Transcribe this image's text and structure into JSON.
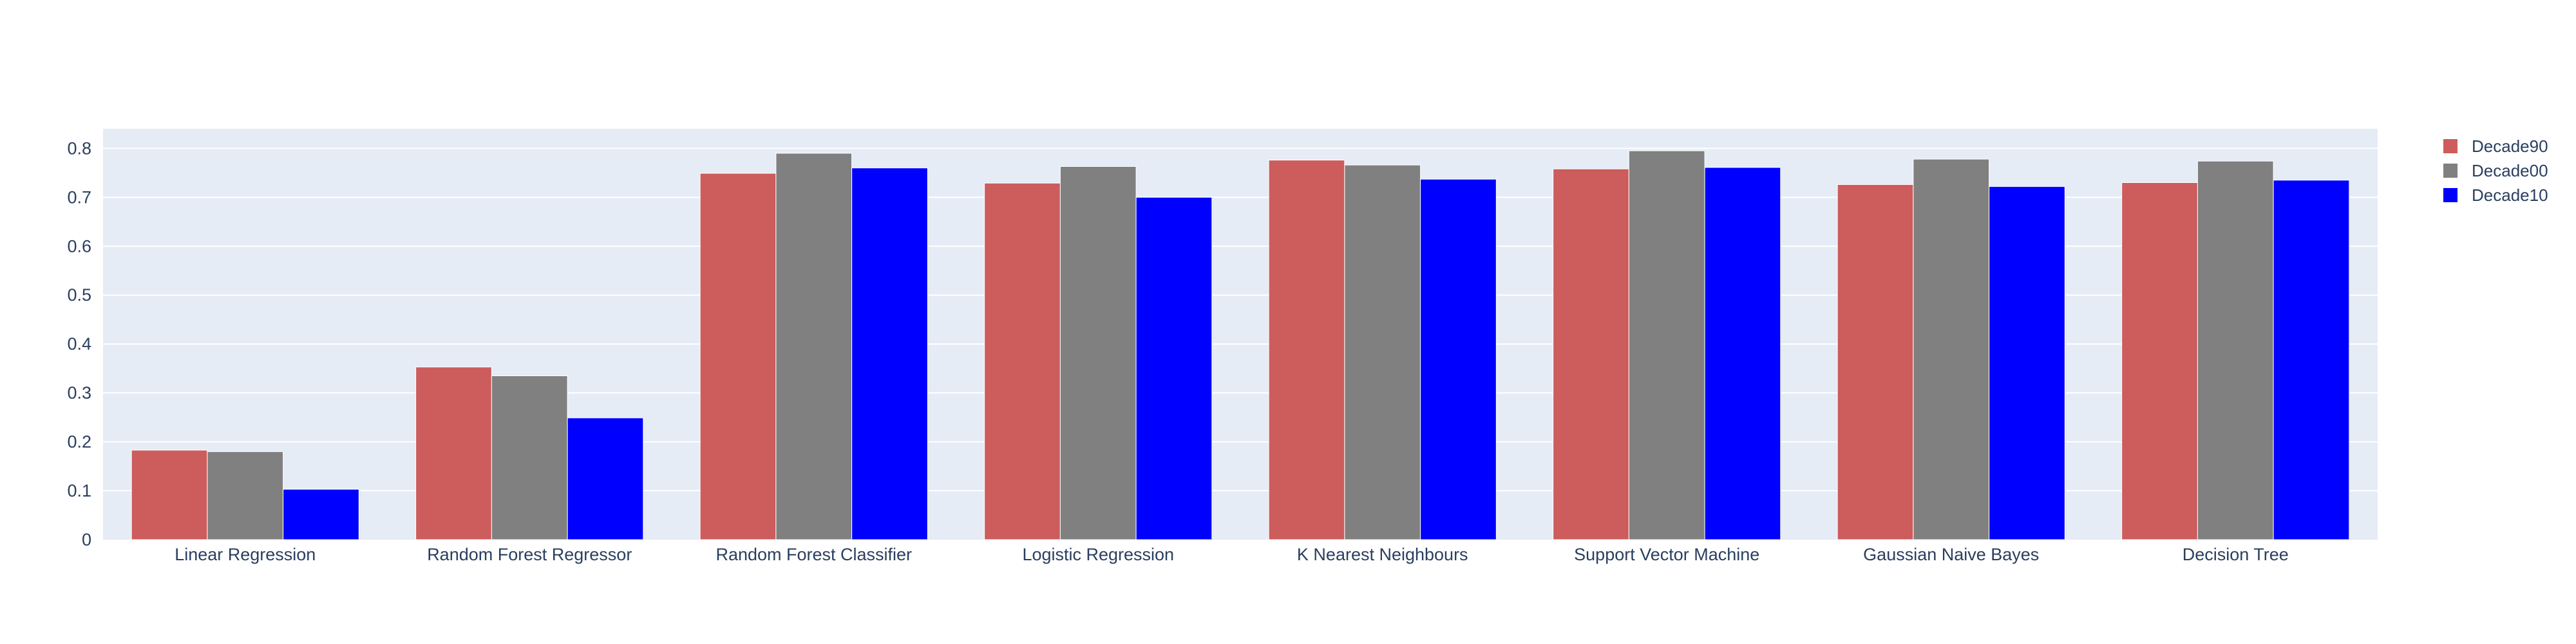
{
  "chart_data": {
    "type": "bar",
    "title": "",
    "xlabel": "",
    "ylabel": "",
    "categories": [
      "Linear Regression",
      "Random Forest Regressor",
      "Random Forest Classifier",
      "Logistic Regression",
      "K Nearest Neighbours",
      "Support Vector Machine",
      "Gaussian Naive Bayes",
      "Decision Tree"
    ],
    "series": [
      {
        "name": "Decade90",
        "color": "#CD5C5C",
        "values": [
          0.183,
          0.353,
          0.749,
          0.729,
          0.776,
          0.758,
          0.726,
          0.73
        ]
      },
      {
        "name": "Decade00",
        "color": "#808080",
        "values": [
          0.18,
          0.335,
          0.79,
          0.763,
          0.766,
          0.795,
          0.778,
          0.774
        ]
      },
      {
        "name": "Decade10",
        "color": "#0000FF",
        "values": [
          0.103,
          0.249,
          0.76,
          0.7,
          0.737,
          0.761,
          0.722,
          0.735
        ]
      }
    ],
    "ylim": [
      0,
      0.84
    ],
    "yticks": [
      0,
      0.1,
      0.2,
      0.3,
      0.4,
      0.5,
      0.6,
      0.7,
      0.8
    ],
    "ytick_labels": [
      "0",
      "0.1",
      "0.2",
      "0.3",
      "0.4",
      "0.5",
      "0.6",
      "0.7",
      "0.8"
    ],
    "grid": true,
    "plot_background": "#E5ECF6",
    "legend": {
      "position": "top-right"
    }
  }
}
